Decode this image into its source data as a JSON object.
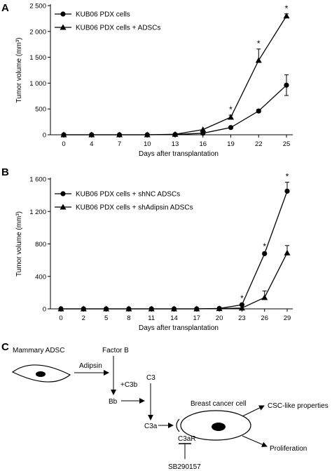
{
  "panels": {
    "a": "A",
    "b": "B",
    "c": "C"
  },
  "chart_data": [
    {
      "type": "line",
      "x": [
        0,
        4,
        7,
        10,
        13,
        16,
        19,
        22,
        25
      ],
      "xticks": [
        "0",
        "4",
        "7",
        "10",
        "13",
        "16",
        "19",
        "22",
        "25"
      ],
      "yticks": [
        0,
        500,
        1000,
        1500,
        2000,
        2500
      ],
      "ytick_labels": [
        "0",
        "500",
        "1 000",
        "1 500",
        "2 000",
        "2 500"
      ],
      "ylim": [
        0,
        2500
      ],
      "xlabel": "Days after transplantation",
      "ylabel": "Tumor volume (mm³)",
      "legend_position": "top-left",
      "series": [
        {
          "name": "KUB06 PDX cells",
          "marker": "circle",
          "values": [
            0,
            0,
            0,
            0,
            5,
            30,
            140,
            460,
            960
          ],
          "errors": [
            0,
            0,
            0,
            0,
            0,
            0,
            0,
            30,
            200
          ]
        },
        {
          "name": "KUB06 PDX cells + ADSCs",
          "marker": "triangle",
          "values": [
            0,
            0,
            0,
            0,
            10,
            100,
            340,
            1440,
            2300
          ],
          "errors": [
            0,
            0,
            0,
            0,
            0,
            0,
            40,
            220,
            40
          ]
        }
      ],
      "significance_marks": [
        {
          "x": 19,
          "label": "*"
        },
        {
          "x": 22,
          "label": "*"
        },
        {
          "x": 25,
          "label": "*"
        }
      ]
    },
    {
      "type": "line",
      "x": [
        0,
        2,
        5,
        8,
        11,
        14,
        17,
        20,
        23,
        26,
        29
      ],
      "xticks": [
        "0",
        "2",
        "5",
        "8",
        "11",
        "14",
        "17",
        "20",
        "23",
        "26",
        "29"
      ],
      "yticks": [
        0,
        400,
        800,
        1200,
        1600
      ],
      "ytick_labels": [
        "0",
        "400",
        "800",
        "1 200",
        "1 600"
      ],
      "ylim": [
        0,
        1600
      ],
      "xlabel": "Days after transplantation",
      "ylabel": "Tumor volume (mm³)",
      "legend_position": "top-left",
      "series": [
        {
          "name": "KUB06 PDX cells + shNC ADSCs",
          "marker": "circle",
          "values": [
            0,
            0,
            0,
            0,
            0,
            0,
            0,
            5,
            50,
            680,
            1450
          ],
          "errors": [
            0,
            0,
            0,
            0,
            0,
            0,
            0,
            0,
            10,
            20,
            110
          ]
        },
        {
          "name": "KUB06 PDX cells + shAdipsin ADSCs",
          "marker": "triangle",
          "values": [
            0,
            0,
            0,
            0,
            0,
            0,
            0,
            3,
            10,
            140,
            690
          ],
          "errors": [
            0,
            0,
            0,
            0,
            0,
            0,
            0,
            0,
            0,
            80,
            90
          ]
        }
      ],
      "significance_marks": [
        {
          "x": 23,
          "label": "*"
        },
        {
          "x": 26,
          "label": "*"
        },
        {
          "x": 29,
          "label": "*"
        }
      ]
    }
  ],
  "diagram": {
    "mammary_adsc": "Mammary ADSC",
    "adipsin": "Adipsin",
    "factor_b": "Factor B",
    "c3b": "+C3b",
    "bb": "Bb",
    "c3": "C3",
    "c3a": "C3a",
    "c3ar": "C3aR",
    "sb290157": "SB290157",
    "breast_cancer_cell": "Breast cancer cell",
    "csc_properties": "CSC-like properties",
    "proliferation": "Proliferation"
  }
}
